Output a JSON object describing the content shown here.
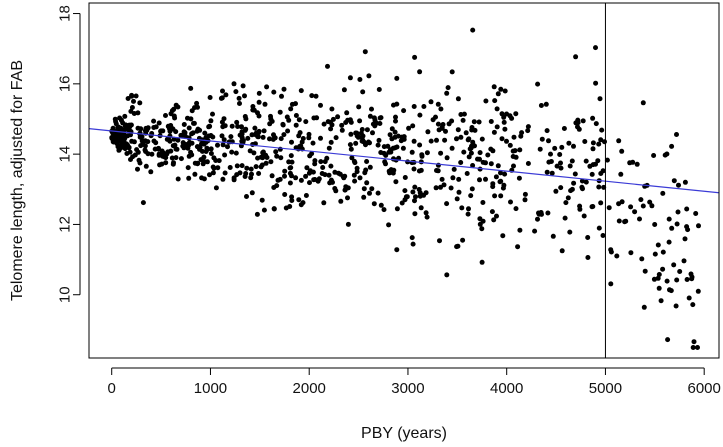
{
  "chart_data": {
    "type": "scatter",
    "title": "",
    "xlabel": "PBY (years)",
    "ylabel": "Telomere length, adjusted for FAB",
    "xlim": [
      -230,
      6150
    ],
    "ylim": [
      8.2,
      18.3
    ],
    "xticks": [
      0,
      1000,
      2000,
      3000,
      4000,
      5000,
      6000
    ],
    "yticks": [
      10,
      12,
      14,
      16,
      18
    ],
    "xtick_labels": [
      "0",
      "1000",
      "2000",
      "3000",
      "4000",
      "5000",
      "6000"
    ],
    "ytick_labels": [
      "10",
      "12",
      "14",
      "16",
      "18"
    ],
    "grid": false,
    "legend": "none",
    "point_color": "#000000",
    "regression_line": {
      "color": "#3b3bd6",
      "intercept": 14.66,
      "slope": -0.000286,
      "x_from": -230,
      "x_to": 6150
    },
    "vertical_reference_line": {
      "x": 5000,
      "color": "#000000"
    },
    "point_model": {
      "note": "approx. 1000 points; values estimated from the figure",
      "n": 1000,
      "segments": [
        {
          "x_range": [
            0,
            150
          ],
          "share": 0.09,
          "mean_start": 14.6,
          "mean_end": 14.5,
          "sd": 0.22
        },
        {
          "x_range": [
            150,
            1000
          ],
          "share": 0.19,
          "mean_start": 14.55,
          "mean_end": 14.3,
          "sd": 0.55
        },
        {
          "x_range": [
            1000,
            2000
          ],
          "share": 0.19,
          "mean_start": 14.3,
          "mean_end": 14.05,
          "sd": 0.8
        },
        {
          "x_range": [
            2000,
            3000
          ],
          "share": 0.18,
          "mean_start": 14.05,
          "mean_end": 13.9,
          "sd": 1.0
        },
        {
          "x_range": [
            3000,
            4000
          ],
          "share": 0.16,
          "mean_start": 13.9,
          "mean_end": 13.75,
          "sd": 1.25
        },
        {
          "x_range": [
            4000,
            5000
          ],
          "share": 0.11,
          "mean_start": 13.75,
          "mean_end": 13.5,
          "sd": 1.35
        },
        {
          "x_range": [
            5000,
            5950
          ],
          "share": 0.08,
          "mean_start": 12.6,
          "mean_end": 11.2,
          "sd": 1.5
        }
      ],
      "y_clip": [
        8.5,
        18.0
      ]
    }
  }
}
